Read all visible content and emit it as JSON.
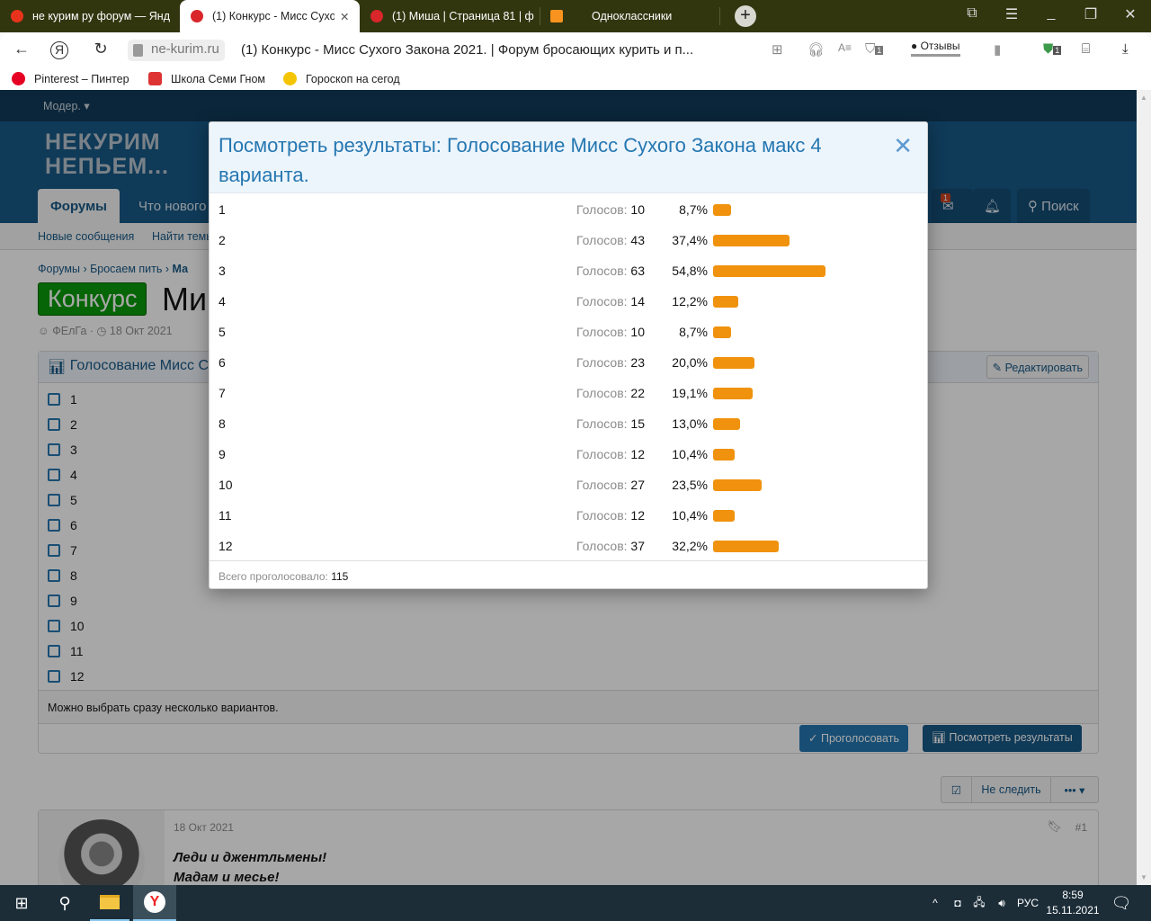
{
  "browser": {
    "tabs": [
      {
        "title": "не курим ру форум — Янд",
        "favicon_color": "#e8331c",
        "active": false
      },
      {
        "title": "(1) Конкурс - Мисс Сухо",
        "favicon_color": "#d9262b",
        "active": true
      },
      {
        "title": "(1) Миша | Страница 81 | ф",
        "favicon_color": "#d9262b",
        "active": false
      },
      {
        "title": "Одноклассники",
        "favicon_color": "#f7931e",
        "active": false
      }
    ],
    "domain": "ne-kurim.ru",
    "page_title": "(1) Конкурс - Мисс Сухого Закона 2021. | Форум бросающих курить и п...",
    "reviews_label": "Отзывы",
    "badge_count": "1",
    "bookmarks": [
      {
        "label": "Pinterest – Пинтер",
        "icon_color": "#e60023"
      },
      {
        "label": "Школа Семи Гном",
        "icon_color": "#d33"
      },
      {
        "label": "Гороскоп на сегод",
        "icon_color": "#f5c400"
      }
    ]
  },
  "forum": {
    "mod_menu": "Модер.",
    "logo_line1": "НЕКУРИМ",
    "logo_line2": "НЕПЬЕМ...",
    "nav_tabs": [
      "Форумы",
      "Что нового"
    ],
    "inbox_badge": "1",
    "search_label": "Поиск",
    "subnav": [
      "Новые сообщения",
      "Найти темы"
    ],
    "breadcrumbs": [
      "Форумы",
      "Бросаем пить",
      "Ма"
    ],
    "thread_prefix": "Конкурс",
    "thread_title_visible": "Ми",
    "author": "ФЕлГа",
    "date": "18 Окт 2021",
    "poll_title_visible": "Голосование Мисс С",
    "edit_label": "Редактировать",
    "poll_options": [
      "1",
      "2",
      "3",
      "4",
      "5",
      "6",
      "7",
      "8",
      "9",
      "10",
      "11",
      "12"
    ],
    "poll_note": "Можно выбрать сразу несколько вариантов.",
    "vote_label": "Проголосовать",
    "results_label": "Посмотреть результаты",
    "unwatch_label": "Не следить",
    "post_date": "18 Окт 2021",
    "post_number": "#1",
    "post_line1": "Леди и джентльмены!",
    "post_line2": "Мадам и месье!",
    "accent_color": "#185886"
  },
  "modal": {
    "title": "Посмотреть результаты: Голосование Мисс Сухого Закона макс 4 варианта.",
    "votes_prefix": "Голосов:",
    "bar_color": "#f0920d",
    "results": [
      {
        "option": "1",
        "votes": "10",
        "percent": "8,7%",
        "pct_value": 8.7
      },
      {
        "option": "2",
        "votes": "43",
        "percent": "37,4%",
        "pct_value": 37.4
      },
      {
        "option": "3",
        "votes": "63",
        "percent": "54,8%",
        "pct_value": 54.8
      },
      {
        "option": "4",
        "votes": "14",
        "percent": "12,2%",
        "pct_value": 12.2
      },
      {
        "option": "5",
        "votes": "10",
        "percent": "8,7%",
        "pct_value": 8.7
      },
      {
        "option": "6",
        "votes": "23",
        "percent": "20,0%",
        "pct_value": 20.0
      },
      {
        "option": "7",
        "votes": "22",
        "percent": "19,1%",
        "pct_value": 19.1
      },
      {
        "option": "8",
        "votes": "15",
        "percent": "13,0%",
        "pct_value": 13.0
      },
      {
        "option": "9",
        "votes": "12",
        "percent": "10,4%",
        "pct_value": 10.4
      },
      {
        "option": "10",
        "votes": "27",
        "percent": "23,5%",
        "pct_value": 23.5
      },
      {
        "option": "11",
        "votes": "12",
        "percent": "10,4%",
        "pct_value": 10.4
      },
      {
        "option": "12",
        "votes": "37",
        "percent": "32,2%",
        "pct_value": 32.2
      }
    ],
    "total_label": "Всего проголосовало:",
    "total": "115"
  },
  "taskbar": {
    "lang": "РУС",
    "time": "8:59",
    "date": "15.11.2021"
  }
}
